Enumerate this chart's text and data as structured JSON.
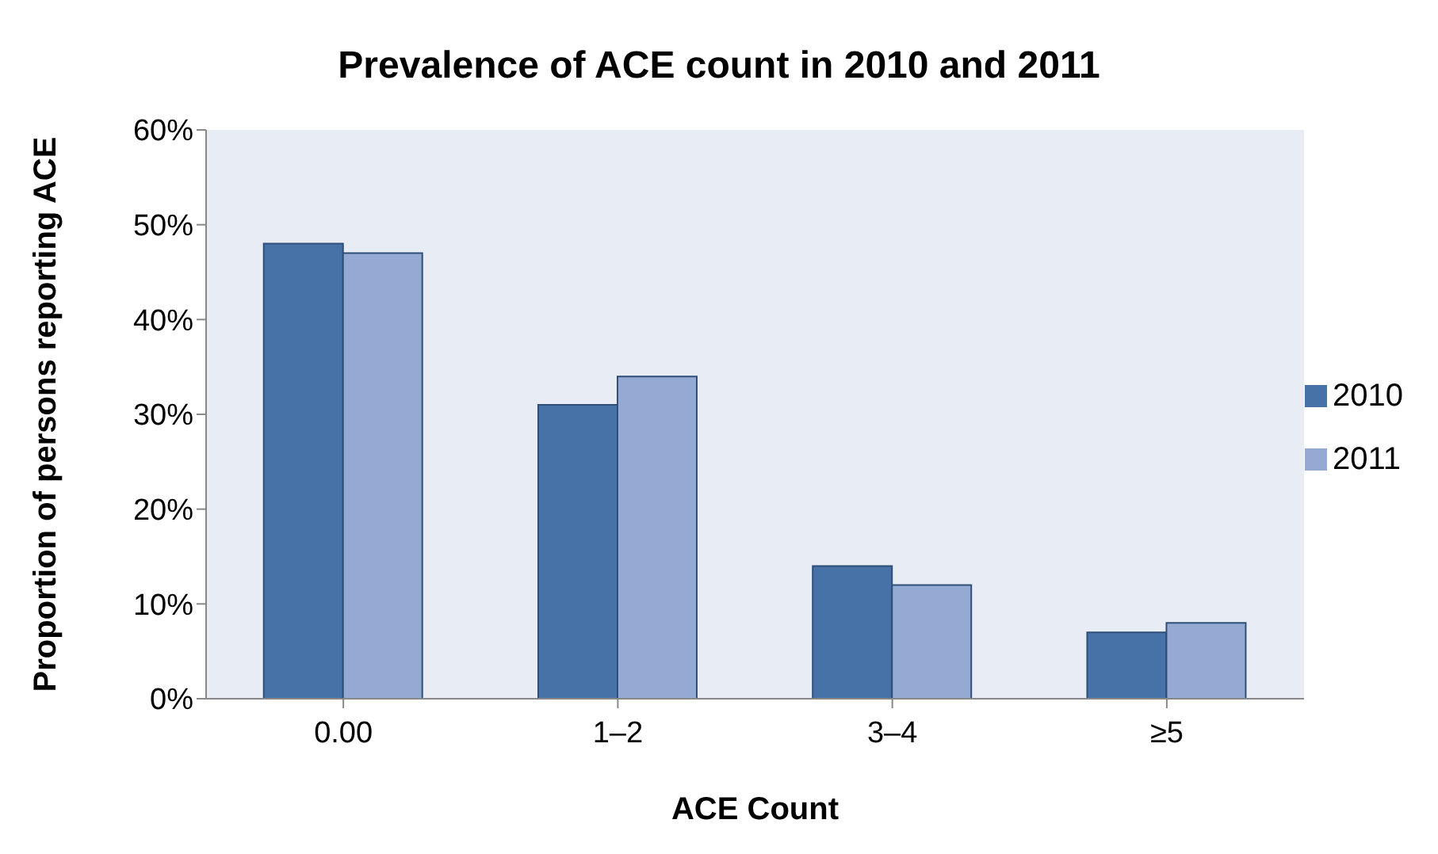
{
  "chart_data": {
    "type": "bar",
    "title": "Prevalence of ACE count in 2010 and 2011",
    "xlabel": "ACE Count",
    "ylabel": "Proportion of persons reporting ACE",
    "categories": [
      "0.00",
      "1–2",
      "3–4",
      "≥5"
    ],
    "series": [
      {
        "name": "2010",
        "color": "#4672a8",
        "values": [
          48,
          31,
          14,
          7
        ]
      },
      {
        "name": "2011",
        "color": "#95aad2",
        "values": [
          47,
          34,
          12,
          8
        ]
      }
    ],
    "ylim": [
      0,
      60
    ],
    "yticks": [
      {
        "value": 0,
        "label": "0%"
      },
      {
        "value": 10,
        "label": "10%"
      },
      {
        "value": 20,
        "label": "20%"
      },
      {
        "value": 30,
        "label": "30%"
      },
      {
        "value": 40,
        "label": "40%"
      },
      {
        "value": 50,
        "label": "50%"
      },
      {
        "value": 60,
        "label": "60%"
      }
    ],
    "grid": false,
    "legend": "right"
  }
}
